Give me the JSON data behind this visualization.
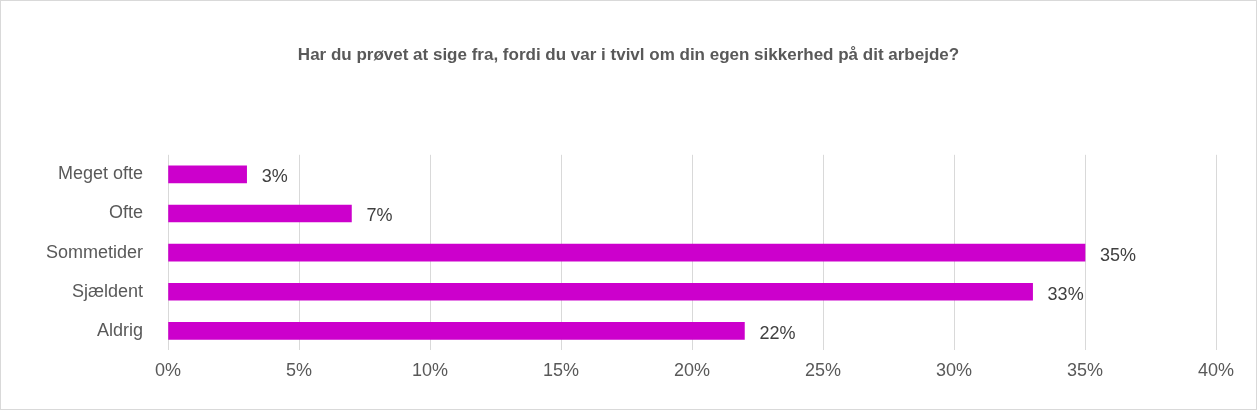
{
  "chart_data": {
    "type": "bar",
    "orientation": "horizontal",
    "title": "Har du prøvet at sige fra, fordi du var i tvivl om din egen sikkerhed på dit arbejde?",
    "categories": [
      "Meget ofte",
      "Ofte",
      "Sommetider",
      "Sjældent",
      "Aldrig"
    ],
    "values": [
      3,
      7,
      35,
      33,
      22
    ],
    "value_labels": [
      "3%",
      "7%",
      "35%",
      "33%",
      "22%"
    ],
    "color": "#cc00cc",
    "xlim": [
      0,
      40
    ],
    "xticks": [
      {
        "value": 0,
        "label": "0%"
      },
      {
        "value": 5,
        "label": "5%"
      },
      {
        "value": 10,
        "label": "10%"
      },
      {
        "value": 15,
        "label": "15%"
      },
      {
        "value": 20,
        "label": "20%"
      },
      {
        "value": 25,
        "label": "25%"
      },
      {
        "value": 30,
        "label": "30%"
      },
      {
        "value": 35,
        "label": "35%"
      },
      {
        "value": 40,
        "label": "40%"
      }
    ],
    "grid": "x",
    "legend": false
  }
}
